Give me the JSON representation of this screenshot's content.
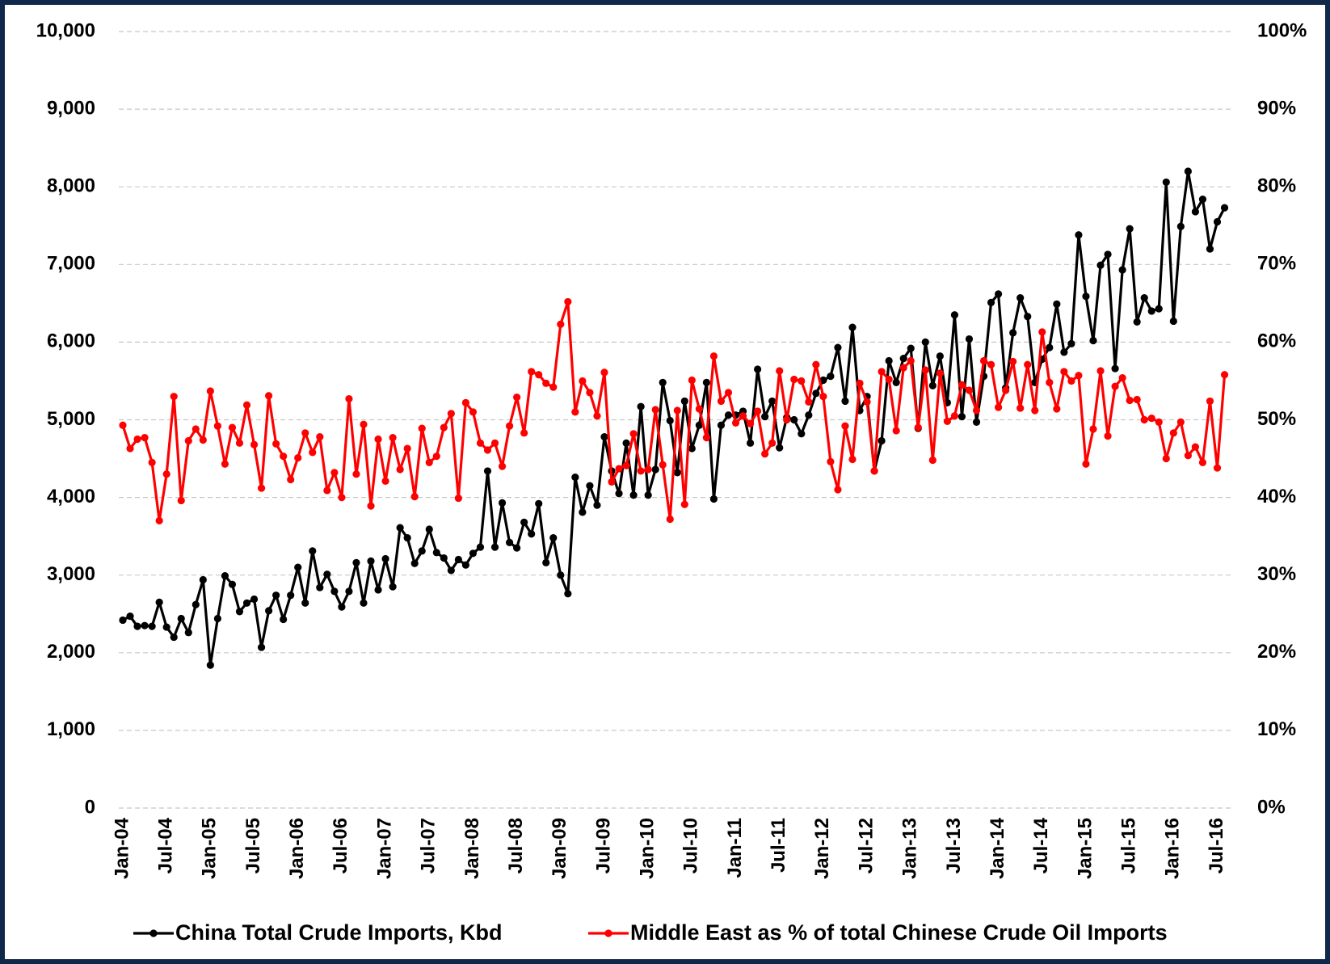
{
  "chart_data": {
    "type": "line",
    "categories": [
      "Jan-04",
      null,
      null,
      null,
      null,
      null,
      "Jul-04",
      null,
      null,
      null,
      null,
      null,
      "Jan-05",
      null,
      null,
      null,
      null,
      null,
      "Jul-05",
      null,
      null,
      null,
      null,
      null,
      "Jan-06",
      null,
      null,
      null,
      null,
      null,
      "Jul-06",
      null,
      null,
      null,
      null,
      null,
      "Jan-07",
      null,
      null,
      null,
      null,
      null,
      "Jul-07",
      null,
      null,
      null,
      null,
      null,
      "Jan-08",
      null,
      null,
      null,
      null,
      null,
      "Jul-08",
      null,
      null,
      null,
      null,
      null,
      "Jan-09",
      null,
      null,
      null,
      null,
      null,
      "Jul-09",
      null,
      null,
      null,
      null,
      null,
      "Jan-10",
      null,
      null,
      null,
      null,
      null,
      "Jul-10",
      null,
      null,
      null,
      null,
      null,
      "Jan-11",
      null,
      null,
      null,
      null,
      null,
      "Jul-11",
      null,
      null,
      null,
      null,
      null,
      "Jan-12",
      null,
      null,
      null,
      null,
      null,
      "Jul-12",
      null,
      null,
      null,
      null,
      null,
      "Jan-13",
      null,
      null,
      null,
      null,
      null,
      "Jul-13",
      null,
      null,
      null,
      null,
      null,
      "Jan-14",
      null,
      null,
      null,
      null,
      null,
      "Jul-14",
      null,
      null,
      null,
      null,
      null,
      "Jan-15",
      null,
      null,
      null,
      null,
      null,
      "Jul-15",
      null,
      null,
      null,
      null,
      null,
      "Jan-16",
      null,
      null,
      null,
      null,
      null,
      "Jul-16",
      null
    ],
    "series": [
      {
        "name": "China Total Crude Imports, Kbd",
        "color": "#000000",
        "axis": "y",
        "values": [
          2420,
          2470,
          2340,
          2350,
          2340,
          2650,
          2330,
          2200,
          2440,
          2260,
          2620,
          2940,
          1840,
          2440,
          2990,
          2880,
          2530,
          2640,
          2690,
          2070,
          2540,
          2740,
          2430,
          2740,
          3100,
          2640,
          3310,
          2840,
          3010,
          2790,
          2590,
          2790,
          3160,
          2640,
          3180,
          2810,
          3210,
          2850,
          3610,
          3480,
          3150,
          3310,
          3590,
          3290,
          3220,
          3060,
          3200,
          3130,
          3280,
          3360,
          4340,
          3360,
          3930,
          3420,
          3350,
          3680,
          3530,
          3920,
          3160,
          3480,
          3000,
          2760,
          4260,
          3810,
          4150,
          3900,
          4780,
          4340,
          4050,
          4700,
          4030,
          5170,
          4030,
          4360,
          5480,
          4990,
          4320,
          5240,
          4630,
          4930,
          5480,
          3980,
          4930,
          5060,
          5060,
          5110,
          4700,
          5650,
          5040,
          5240,
          4640,
          5030,
          5000,
          4820,
          5060,
          5340,
          5510,
          5560,
          5930,
          5240,
          6190,
          5120,
          5300,
          4340,
          4730,
          5760,
          5480,
          5790,
          5920,
          4890,
          6000,
          5440,
          5820,
          5220,
          6350,
          5040,
          6040,
          4970,
          5560,
          6510,
          6620,
          5410,
          6120,
          6570,
          6330,
          5480,
          5780,
          5930,
          6490,
          5870,
          5980,
          7380,
          6590,
          6020,
          6990,
          7130,
          5660,
          6930,
          7460,
          6260,
          6570,
          6400,
          6430,
          8060,
          6270,
          7490,
          8200,
          7680,
          7840,
          7200,
          7550,
          7730
        ]
      },
      {
        "name": "Middle East as % of total Chinese Crude Oil Imports",
        "color": "#ff0000",
        "axis": "y2",
        "values": [
          49.3,
          46.3,
          47.5,
          47.7,
          44.5,
          37.0,
          43.0,
          53.0,
          39.6,
          47.3,
          48.8,
          47.4,
          53.7,
          49.2,
          44.3,
          49.0,
          47.0,
          51.9,
          46.8,
          41.2,
          53.1,
          46.9,
          45.3,
          42.3,
          45.1,
          48.3,
          45.8,
          47.8,
          40.9,
          43.2,
          40.0,
          52.7,
          43.0,
          49.4,
          38.9,
          47.5,
          42.1,
          47.7,
          43.6,
          46.3,
          40.1,
          48.9,
          44.5,
          45.3,
          49.0,
          50.8,
          39.9,
          52.2,
          51.0,
          47.0,
          46.1,
          47.0,
          44.0,
          49.2,
          52.9,
          48.3,
          56.2,
          55.8,
          54.7,
          54.2,
          62.3,
          65.2,
          51.0,
          55.0,
          53.5,
          50.5,
          56.1,
          42.0,
          43.7,
          44.1,
          48.2,
          43.4,
          43.6,
          51.3,
          44.2,
          37.2,
          51.2,
          39.1,
          55.1,
          51.4,
          47.7,
          58.2,
          52.4,
          53.5,
          49.6,
          50.5,
          49.5,
          51.1,
          45.6,
          47.0,
          56.3,
          50.0,
          55.2,
          55.0,
          52.3,
          57.1,
          53.0,
          44.6,
          41.0,
          49.2,
          44.9,
          54.7,
          52.3,
          43.4,
          56.2,
          55.2,
          48.6,
          56.7,
          57.6,
          49.0,
          56.4,
          44.8,
          56.0,
          49.8,
          50.5,
          54.5,
          53.8,
          51.2,
          57.6,
          57.1,
          51.6,
          53.8,
          57.5,
          51.5,
          57.1,
          51.2,
          61.3,
          54.8,
          51.4,
          56.2,
          55.0,
          55.7,
          44.3,
          48.8,
          56.3,
          47.9,
          54.3,
          55.4,
          52.5,
          52.6,
          50.0,
          50.2,
          49.7,
          45.0,
          48.3,
          49.7,
          45.4,
          46.5,
          44.5,
          52.4,
          43.8,
          55.8
        ]
      }
    ],
    "ylim": [
      0,
      10000
    ],
    "yticks": [
      0,
      {
        "value": 1000,
        "label": "1,000"
      },
      {
        "value": 2000,
        "label": "2,000"
      },
      {
        "value": 3000,
        "label": "3,000"
      },
      {
        "value": 4000,
        "label": "4,000"
      },
      {
        "value": 5000,
        "label": "5,000"
      },
      {
        "value": 6000,
        "label": "6,000"
      },
      {
        "value": 7000,
        "label": "7,000"
      },
      {
        "value": 8000,
        "label": "8,000"
      },
      {
        "value": 9000,
        "label": "9,000"
      },
      {
        "value": 10000,
        "label": "10,000"
      }
    ],
    "y2lim": [
      0,
      100
    ],
    "y2ticks": [
      {
        "value": 0,
        "label": "0%"
      },
      {
        "value": 10,
        "label": "10%"
      },
      {
        "value": 20,
        "label": "20%"
      },
      {
        "value": 30,
        "label": "30%"
      },
      {
        "value": 40,
        "label": "40%"
      },
      {
        "value": 50,
        "label": "50%"
      },
      {
        "value": 60,
        "label": "60%"
      },
      {
        "value": 70,
        "label": "70%"
      },
      {
        "value": 80,
        "label": "80%"
      },
      {
        "value": 90,
        "label": "90%"
      },
      {
        "value": 100,
        "label": "100%"
      }
    ],
    "grid": true,
    "legend": "bottom"
  }
}
